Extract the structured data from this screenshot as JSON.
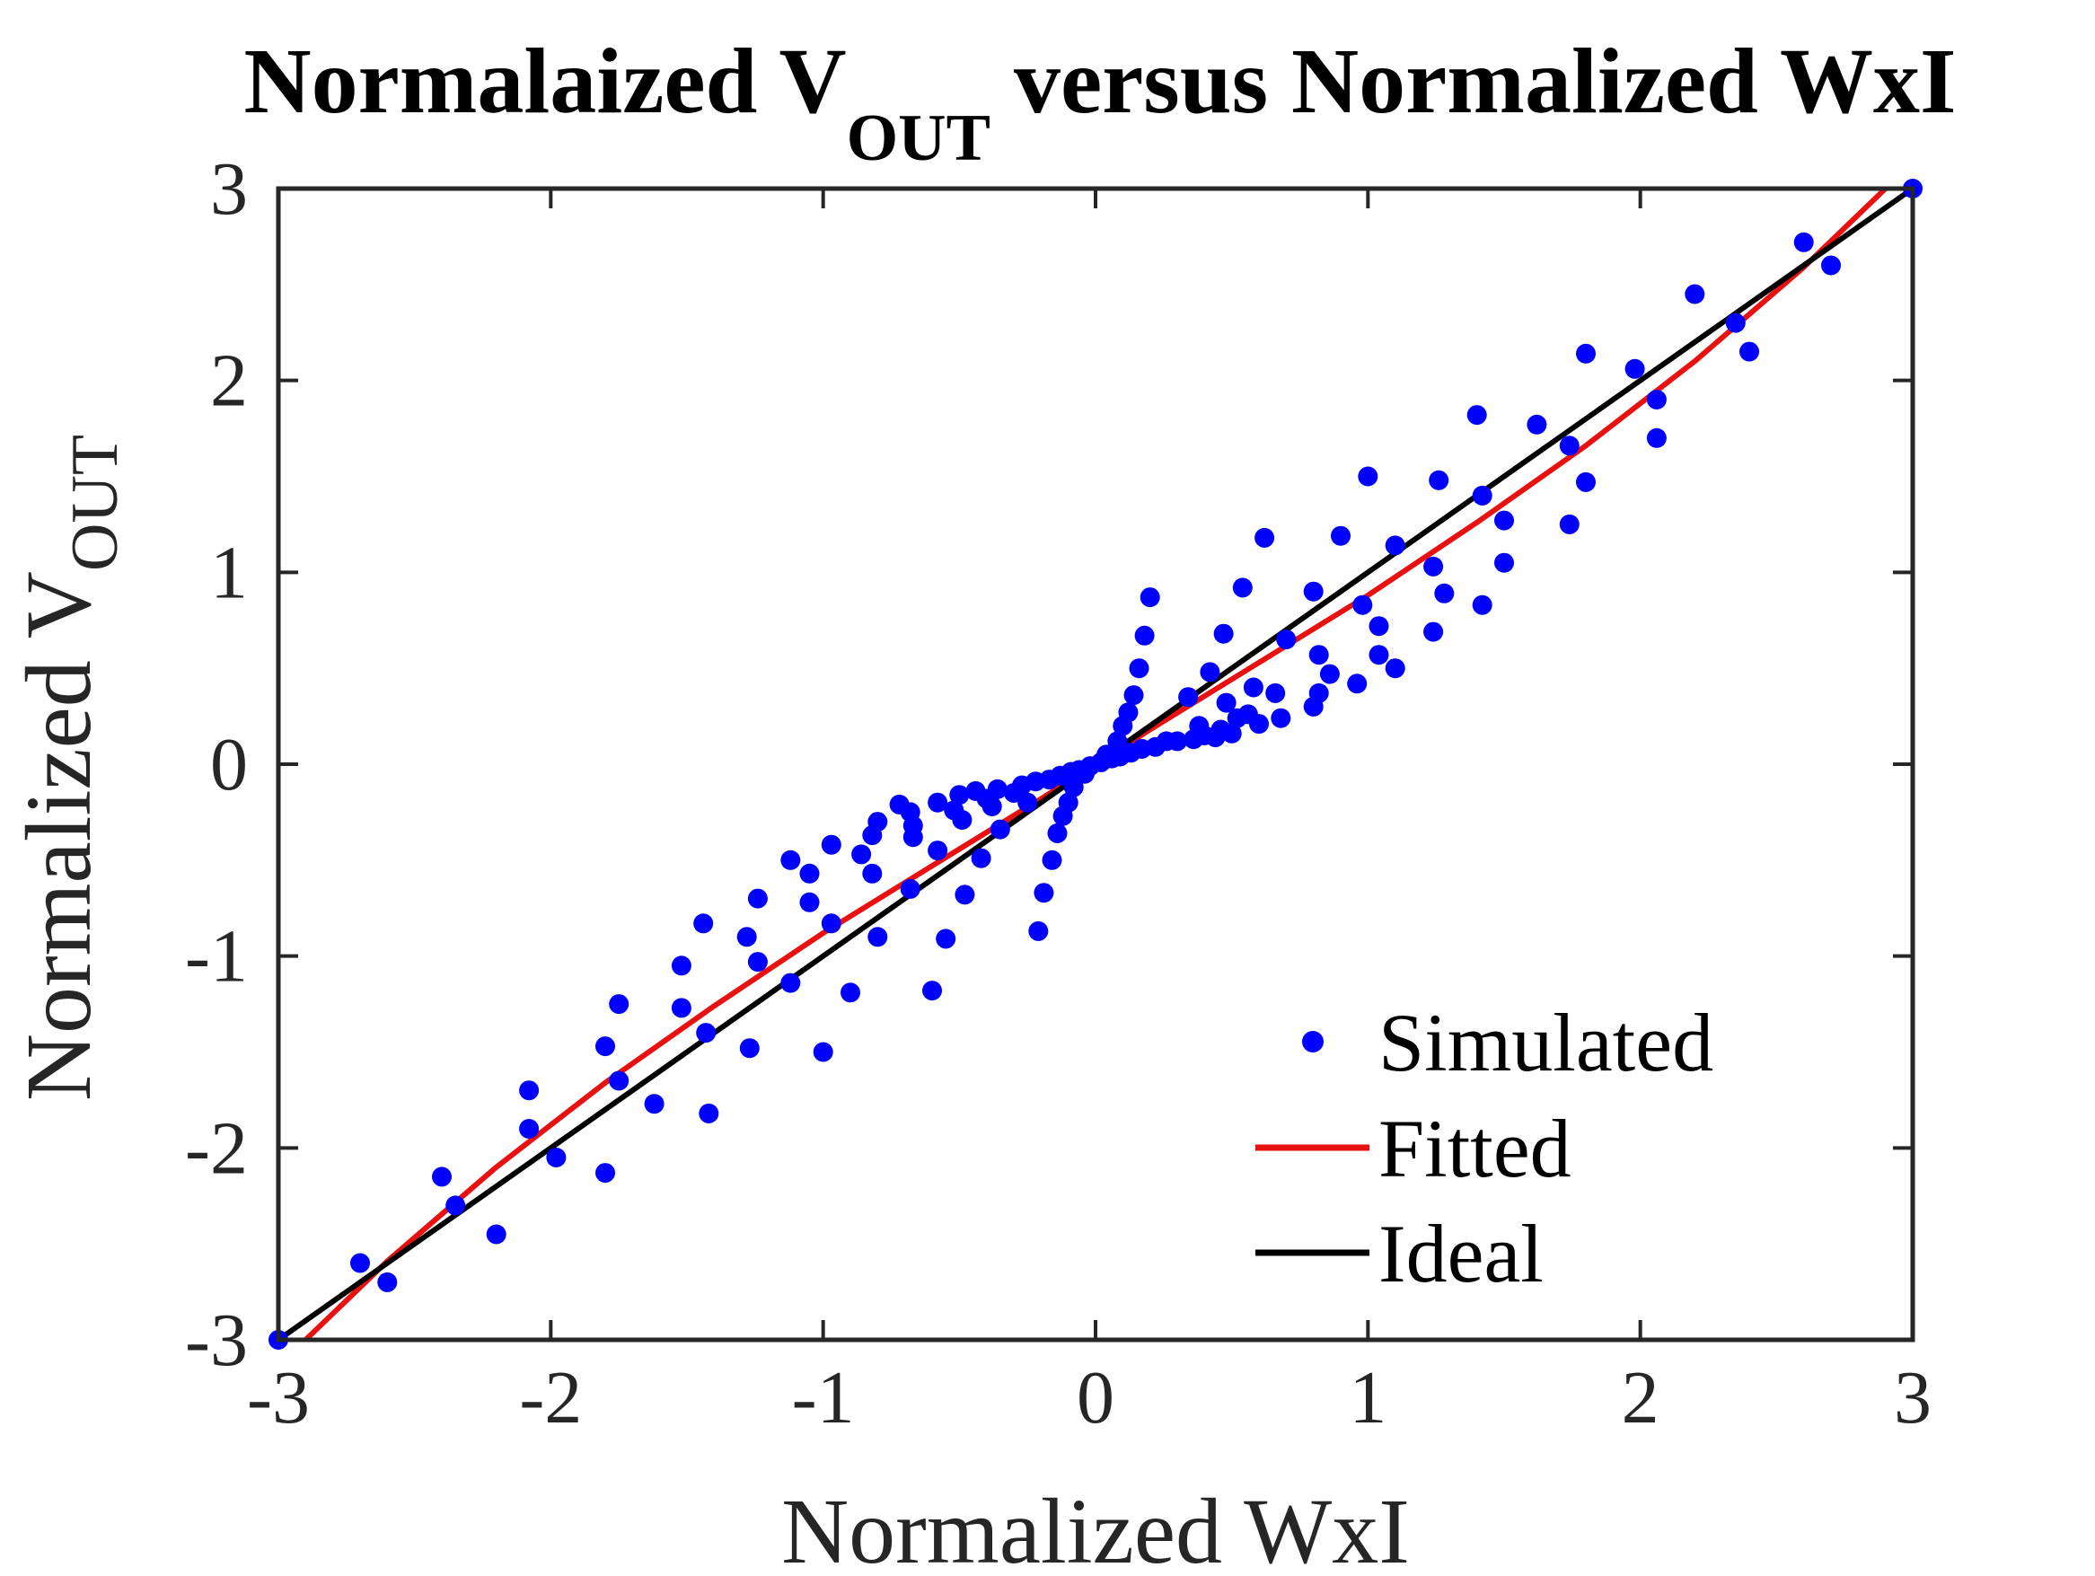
{
  "chart_data": {
    "type": "scatter",
    "title": {
      "main": "Normalaized V",
      "sub": "OUT",
      "rest": " versus Normalized WxI"
    },
    "xlabel": "Normalized WxI",
    "ylabel": {
      "main": "Normalized V",
      "sub": "OUT"
    },
    "xlim": [
      -3,
      3
    ],
    "ylim": [
      -3,
      3
    ],
    "xticks": [
      -3,
      -2,
      -1,
      0,
      1,
      2,
      3
    ],
    "yticks": [
      -3,
      -2,
      -1,
      0,
      1,
      2,
      3
    ],
    "xtick_labels": [
      "-3",
      "-2",
      "-1",
      "0",
      "1",
      "2",
      "3"
    ],
    "ytick_labels": [
      "-3",
      "-2",
      "-1",
      "0",
      "1",
      "2",
      "3"
    ],
    "grid": false,
    "legend_position": "bottom-right",
    "series": [
      {
        "name": "Simulated",
        "style": "markers",
        "color": "#0000ff",
        "points": [
          [
            -3.0,
            -3.0
          ],
          [
            -2.7,
            -2.6
          ],
          [
            -2.6,
            -2.7
          ],
          [
            -2.4,
            -2.15
          ],
          [
            -2.35,
            -2.3
          ],
          [
            -2.2,
            -2.45
          ],
          [
            -2.08,
            -1.7
          ],
          [
            -2.08,
            -1.9
          ],
          [
            -1.98,
            -2.05
          ],
          [
            -1.8,
            -2.13
          ],
          [
            -1.8,
            -1.47
          ],
          [
            -1.75,
            -1.25
          ],
          [
            -1.75,
            -1.65
          ],
          [
            -1.62,
            -1.77
          ],
          [
            -1.52,
            -1.05
          ],
          [
            -1.52,
            -1.27
          ],
          [
            -1.44,
            -0.83
          ],
          [
            -1.43,
            -1.4
          ],
          [
            -1.42,
            -1.82
          ],
          [
            -1.28,
            -0.9
          ],
          [
            -1.27,
            -1.48
          ],
          [
            -1.24,
            -0.7
          ],
          [
            -1.24,
            -1.03
          ],
          [
            -1.12,
            -0.5
          ],
          [
            -1.12,
            -1.14
          ],
          [
            -1.05,
            -0.57
          ],
          [
            -1.05,
            -0.72
          ],
          [
            -1.0,
            -1.5
          ],
          [
            -0.97,
            -0.42
          ],
          [
            -0.97,
            -0.83
          ],
          [
            -0.9,
            -1.19
          ],
          [
            -0.86,
            -0.47
          ],
          [
            -0.82,
            -0.37
          ],
          [
            -0.82,
            -0.57
          ],
          [
            -0.8,
            -0.3
          ],
          [
            -0.8,
            -0.9
          ],
          [
            -0.72,
            -0.21
          ],
          [
            -0.68,
            -0.25
          ],
          [
            -0.68,
            -0.65
          ],
          [
            -0.67,
            -0.32
          ],
          [
            -0.67,
            -0.38
          ],
          [
            -0.6,
            -1.18
          ],
          [
            -0.58,
            -0.2
          ],
          [
            -0.58,
            -0.45
          ],
          [
            -0.55,
            -0.91
          ],
          [
            -0.52,
            -0.24
          ],
          [
            -0.5,
            -0.16
          ],
          [
            -0.49,
            -0.29
          ],
          [
            -0.48,
            -0.68
          ],
          [
            -0.44,
            -0.14
          ],
          [
            -0.42,
            -0.49
          ],
          [
            -0.4,
            -0.18
          ],
          [
            -0.38,
            -0.22
          ],
          [
            -0.36,
            -0.13
          ],
          [
            -0.35,
            -0.34
          ],
          [
            -0.3,
            -0.15
          ],
          [
            -0.27,
            -0.11
          ],
          [
            -0.25,
            -0.2
          ],
          [
            -0.22,
            -0.09
          ],
          [
            -0.21,
            -0.87
          ],
          [
            -0.19,
            -0.67
          ],
          [
            -0.17,
            -0.08
          ],
          [
            -0.16,
            -0.5
          ],
          [
            -0.14,
            -0.36
          ],
          [
            -0.13,
            -0.06
          ],
          [
            -0.12,
            -0.27
          ],
          [
            -0.1,
            -0.2
          ],
          [
            -0.09,
            -0.04
          ],
          [
            -0.08,
            -0.12
          ],
          [
            -0.06,
            -0.03
          ],
          [
            -0.04,
            -0.05
          ],
          [
            -0.02,
            -0.01
          ],
          [
            0.02,
            0.01
          ],
          [
            0.04,
            0.05
          ],
          [
            0.06,
            0.03
          ],
          [
            0.08,
            0.12
          ],
          [
            0.09,
            0.04
          ],
          [
            0.1,
            0.2
          ],
          [
            0.12,
            0.27
          ],
          [
            0.13,
            0.06
          ],
          [
            0.14,
            0.36
          ],
          [
            0.16,
            0.5
          ],
          [
            0.17,
            0.08
          ],
          [
            0.18,
            0.67
          ],
          [
            0.2,
            0.87
          ],
          [
            0.22,
            0.09
          ],
          [
            0.26,
            0.12
          ],
          [
            0.3,
            0.12
          ],
          [
            0.34,
            0.35
          ],
          [
            0.36,
            0.13
          ],
          [
            0.38,
            0.2
          ],
          [
            0.4,
            0.15
          ],
          [
            0.42,
            0.48
          ],
          [
            0.44,
            0.14
          ],
          [
            0.46,
            0.18
          ],
          [
            0.47,
            0.68
          ],
          [
            0.48,
            0.32
          ],
          [
            0.5,
            0.16
          ],
          [
            0.52,
            0.24
          ],
          [
            0.54,
            0.92
          ],
          [
            0.56,
            0.26
          ],
          [
            0.58,
            0.4
          ],
          [
            0.6,
            0.21
          ],
          [
            0.62,
            1.18
          ],
          [
            0.66,
            0.37
          ],
          [
            0.68,
            0.24
          ],
          [
            0.7,
            0.65
          ],
          [
            0.8,
            0.3
          ],
          [
            0.8,
            0.9
          ],
          [
            0.82,
            0.57
          ],
          [
            0.82,
            0.37
          ],
          [
            0.86,
            0.47
          ],
          [
            0.9,
            1.19
          ],
          [
            0.96,
            0.42
          ],
          [
            0.98,
            0.83
          ],
          [
            1.0,
            1.5
          ],
          [
            1.04,
            0.72
          ],
          [
            1.04,
            0.57
          ],
          [
            1.1,
            1.14
          ],
          [
            1.1,
            0.5
          ],
          [
            1.24,
            1.03
          ],
          [
            1.24,
            0.69
          ],
          [
            1.26,
            1.48
          ],
          [
            1.28,
            0.89
          ],
          [
            1.4,
            1.82
          ],
          [
            1.42,
            0.83
          ],
          [
            1.42,
            1.4
          ],
          [
            1.5,
            1.27
          ],
          [
            1.5,
            1.05
          ],
          [
            1.62,
            1.77
          ],
          [
            1.74,
            1.25
          ],
          [
            1.74,
            1.66
          ],
          [
            1.8,
            1.47
          ],
          [
            1.8,
            2.14
          ],
          [
            1.98,
            2.06
          ],
          [
            2.06,
            1.9
          ],
          [
            2.06,
            1.7
          ],
          [
            2.2,
            2.45
          ],
          [
            2.35,
            2.3
          ],
          [
            2.4,
            2.15
          ],
          [
            2.6,
            2.72
          ],
          [
            2.7,
            2.6
          ],
          [
            3.0,
            3.0
          ]
        ]
      },
      {
        "name": "Fitted",
        "style": "line",
        "color": "#e8110f",
        "points": [
          [
            -2.9,
            -3.0
          ],
          [
            -2.6,
            -2.59
          ],
          [
            -2.2,
            -2.1
          ],
          [
            -1.8,
            -1.66
          ],
          [
            -1.4,
            -1.26
          ],
          [
            -1.0,
            -0.88
          ],
          [
            -0.6,
            -0.53
          ],
          [
            -0.2,
            -0.18
          ],
          [
            0.0,
            0.0
          ],
          [
            0.2,
            0.18
          ],
          [
            0.6,
            0.53
          ],
          [
            1.0,
            0.88
          ],
          [
            1.4,
            1.26
          ],
          [
            1.8,
            1.66
          ],
          [
            2.2,
            2.1
          ],
          [
            2.6,
            2.59
          ],
          [
            2.9,
            3.0
          ]
        ]
      },
      {
        "name": "Ideal",
        "style": "line",
        "color": "#000000",
        "points": [
          [
            -3,
            -3
          ],
          [
            3,
            3
          ]
        ]
      }
    ]
  }
}
